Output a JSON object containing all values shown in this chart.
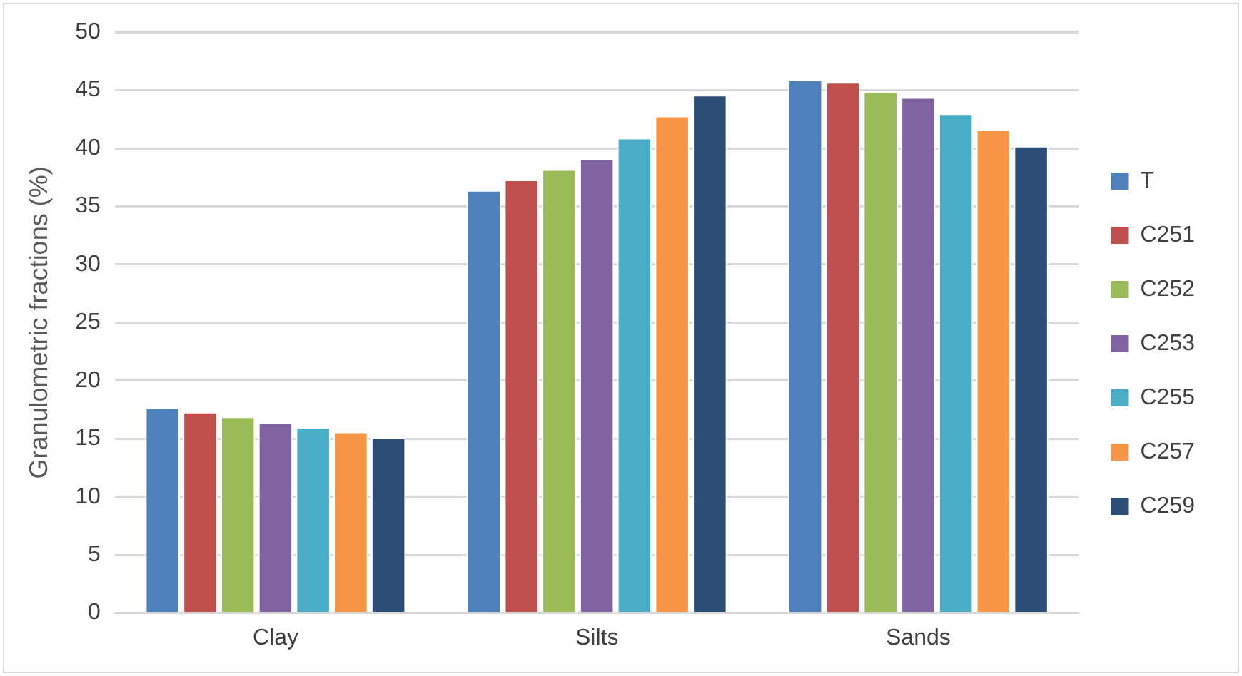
{
  "chart_data": {
    "type": "bar",
    "ylabel": "Granulometric fractions (%)",
    "categories": [
      "Clay",
      "Silts",
      "Sands"
    ],
    "series": [
      {
        "name": "T",
        "color": "#4f81bd",
        "values": [
          17.7,
          36.4,
          45.9
        ]
      },
      {
        "name": "C251",
        "color": "#c0504d",
        "values": [
          17.3,
          37.3,
          45.7
        ]
      },
      {
        "name": "C252",
        "color": "#9bbb59",
        "values": [
          16.9,
          38.2,
          44.9
        ]
      },
      {
        "name": "C253",
        "color": "#8064a2",
        "values": [
          16.4,
          39.1,
          44.4
        ]
      },
      {
        "name": "C255",
        "color": "#4bacc6",
        "values": [
          16.0,
          40.9,
          43.0
        ]
      },
      {
        "name": "C257",
        "color": "#f79646",
        "values": [
          15.6,
          42.8,
          41.6
        ]
      },
      {
        "name": "C259",
        "color": "#2c4d75",
        "values": [
          15.1,
          44.6,
          40.2
        ]
      }
    ],
    "ylim": [
      0,
      50
    ],
    "yticks": [
      0,
      5,
      10,
      15,
      20,
      25,
      30,
      35,
      40,
      45,
      50
    ],
    "grid": "y",
    "legend": "right"
  }
}
